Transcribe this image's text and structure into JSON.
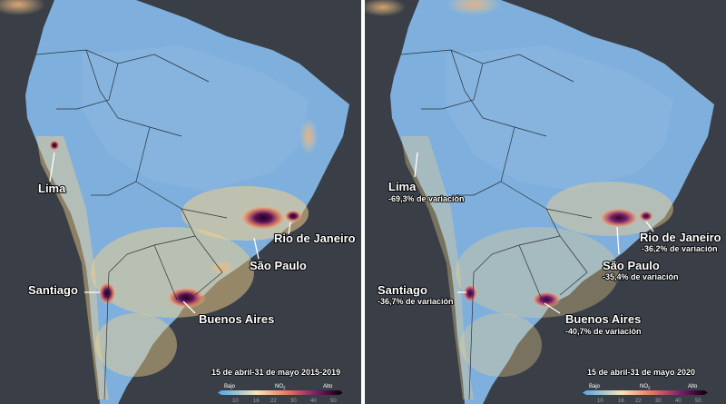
{
  "colors": {
    "ocean": "#3a3f47",
    "land_low": "#7fb0dd",
    "land_mid": "#f2d08a",
    "hot": "#e0705a",
    "high": "#4a1047",
    "peak": "#1b0421"
  },
  "panels": [
    {
      "period_label": "15 de abril-31 de mayo 2015-2019",
      "legend": {
        "low": "Bajo",
        "high": "Alto",
        "title": "NO",
        "sub": "2",
        "ticks": [
          "10",
          "16",
          "22",
          "30",
          "40",
          "50"
        ]
      },
      "cities": [
        {
          "name": "Lima"
        },
        {
          "name": "Rio de Janeiro"
        },
        {
          "name": "São Paulo"
        },
        {
          "name": "Santiago"
        },
        {
          "name": "Buenos Aires"
        }
      ]
    },
    {
      "period_label": "15 de abril-31 de mayo 2020",
      "legend": {
        "low": "Bajo",
        "high": "Alto",
        "title": "NO",
        "sub": "2",
        "ticks": [
          "10",
          "16",
          "22",
          "30",
          "40",
          "50"
        ]
      },
      "cities": [
        {
          "name": "Lima",
          "change": "-69,3% de variación"
        },
        {
          "name": "Rio de Janeiro",
          "change": "-36,2% de variación"
        },
        {
          "name": "São Paulo",
          "change": "-35,4% de variación"
        },
        {
          "name": "Santiago",
          "change": "-36,7% de variación"
        },
        {
          "name": "Buenos Aires",
          "change": "-40,7% de variación"
        }
      ]
    }
  ]
}
